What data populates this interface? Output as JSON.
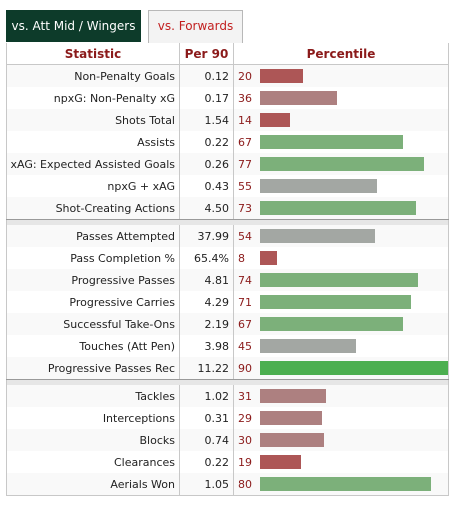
{
  "tabs": [
    {
      "label": "vs. Att Mid / Wingers"
    },
    {
      "label": "vs. Forwards"
    }
  ],
  "headers": {
    "statistic": "Statistic",
    "per90": "Per 90",
    "percentile": "Percentile"
  },
  "colors": {
    "high": "#4caf50",
    "good": "#7cb07a",
    "mid": "#a3a7a3",
    "lowmid": "#ad8080",
    "low": "#ad5656"
  },
  "groups": [
    [
      {
        "stat": "Non-Penalty Goals",
        "per90": "0.12",
        "pct": 20
      },
      {
        "stat": "npxG: Non-Penalty xG",
        "per90": "0.17",
        "pct": 36
      },
      {
        "stat": "Shots Total",
        "per90": "1.54",
        "pct": 14
      },
      {
        "stat": "Assists",
        "per90": "0.22",
        "pct": 67
      },
      {
        "stat": "xAG: Expected Assisted Goals",
        "per90": "0.26",
        "pct": 77
      },
      {
        "stat": "npxG + xAG",
        "per90": "0.43",
        "pct": 55
      },
      {
        "stat": "Shot-Creating Actions",
        "per90": "4.50",
        "pct": 73
      }
    ],
    [
      {
        "stat": "Passes Attempted",
        "per90": "37.99",
        "pct": 54
      },
      {
        "stat": "Pass Completion %",
        "per90": "65.4%",
        "pct": 8
      },
      {
        "stat": "Progressive Passes",
        "per90": "4.81",
        "pct": 74
      },
      {
        "stat": "Progressive Carries",
        "per90": "4.29",
        "pct": 71
      },
      {
        "stat": "Successful Take-Ons",
        "per90": "2.19",
        "pct": 67
      },
      {
        "stat": "Touches (Att Pen)",
        "per90": "3.98",
        "pct": 45
      },
      {
        "stat": "Progressive Passes Rec",
        "per90": "11.22",
        "pct": 90
      }
    ],
    [
      {
        "stat": "Tackles",
        "per90": "1.02",
        "pct": 31
      },
      {
        "stat": "Interceptions",
        "per90": "0.31",
        "pct": 29
      },
      {
        "stat": "Blocks",
        "per90": "0.74",
        "pct": 30
      },
      {
        "stat": "Clearances",
        "per90": "0.22",
        "pct": 19
      },
      {
        "stat": "Aerials Won",
        "per90": "1.05",
        "pct": 80
      }
    ]
  ]
}
